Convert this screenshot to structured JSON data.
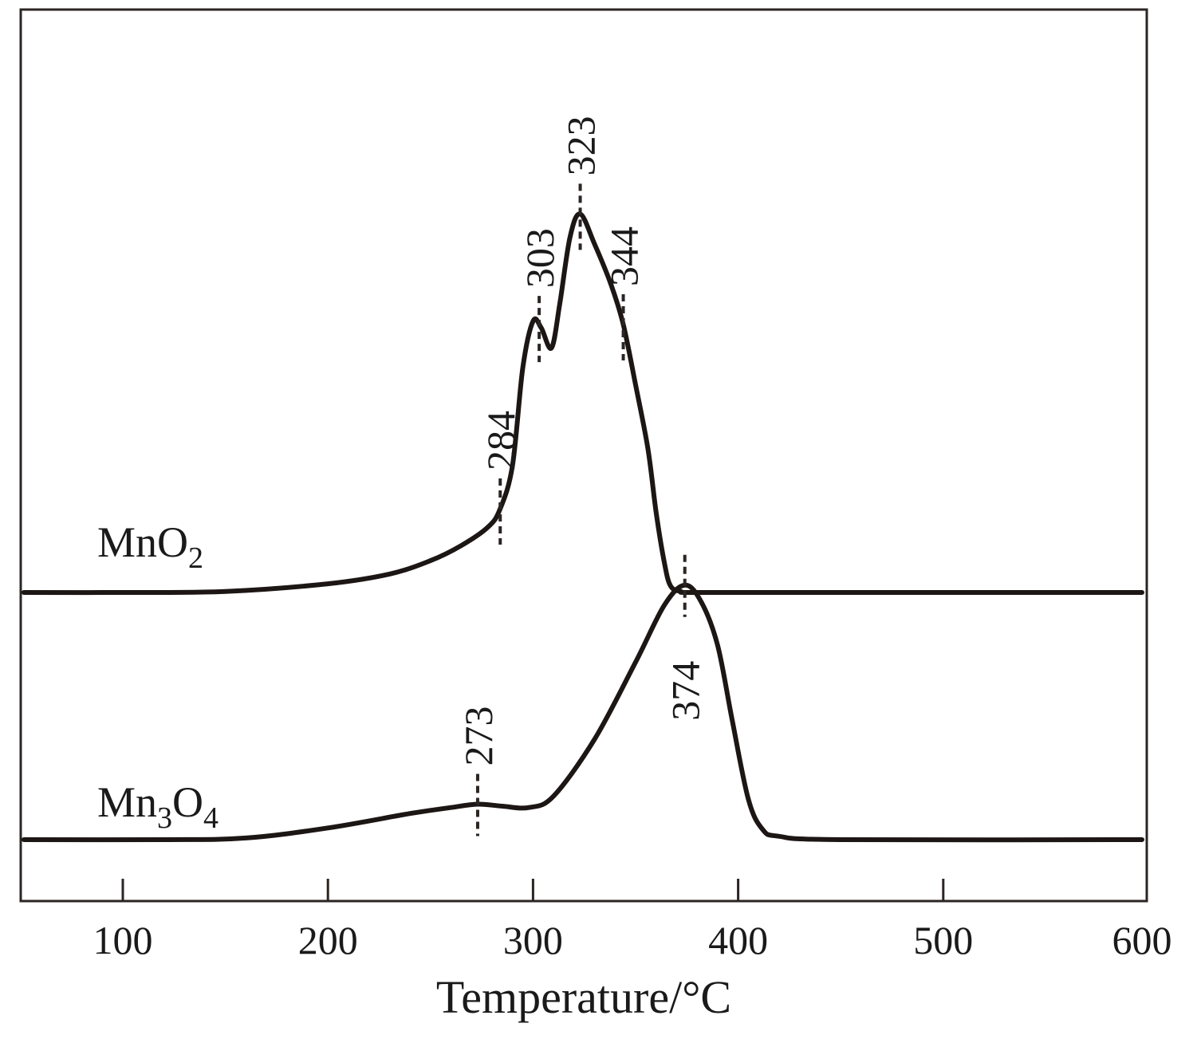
{
  "chart_data": {
    "type": "line",
    "title": "",
    "xlabel": "Temperature/°C",
    "ylabel": "",
    "xlim": [
      50,
      600
    ],
    "xticks": [
      100,
      200,
      300,
      400,
      500,
      600
    ],
    "grid": false,
    "series": [
      {
        "name": "MnO2",
        "label_base": "MnO",
        "label_sub": "2",
        "baseline": 0,
        "x": [
          50,
          100,
          150,
          200,
          230,
          250,
          265,
          278,
          284,
          290,
          295,
          300,
          304,
          309,
          313,
          318,
          323,
          330,
          338,
          344,
          350,
          356,
          360,
          364,
          367,
          372,
          380,
          450,
          600
        ],
        "y": [
          0,
          0,
          0.3,
          2.6,
          5.5,
          9.5,
          14,
          19.5,
          25,
          38,
          67,
          81,
          79,
          73,
          86,
          106,
          113,
          104,
          92,
          80,
          62,
          43,
          24,
          9,
          2,
          0.3,
          0,
          0,
          0
        ],
        "peaks": [
          {
            "x": 284,
            "label": "284"
          },
          {
            "x": 303,
            "label": "303"
          },
          {
            "x": 323,
            "label": "323"
          },
          {
            "x": 344,
            "label": "344"
          }
        ]
      },
      {
        "name": "Mn3O4",
        "label_base": "Mn",
        "label_sub1": "3",
        "label_mid": "O",
        "label_sub2": "4",
        "baseline": 0,
        "x": [
          50,
          120,
          160,
          200,
          240,
          260,
          273,
          285,
          298,
          310,
          330,
          350,
          364,
          374,
          382,
          390,
          397,
          405,
          412,
          420,
          450,
          600
        ],
        "y": [
          0,
          0,
          0.5,
          3.5,
          7.8,
          9.6,
          10.6,
          10,
          9.6,
          13,
          30,
          53,
          70,
          76,
          71,
          58,
          36,
          12,
          3,
          1,
          0,
          0
        ],
        "peaks": [
          {
            "x": 273,
            "label": "273"
          },
          {
            "x": 374,
            "label": "374"
          }
        ]
      }
    ]
  }
}
